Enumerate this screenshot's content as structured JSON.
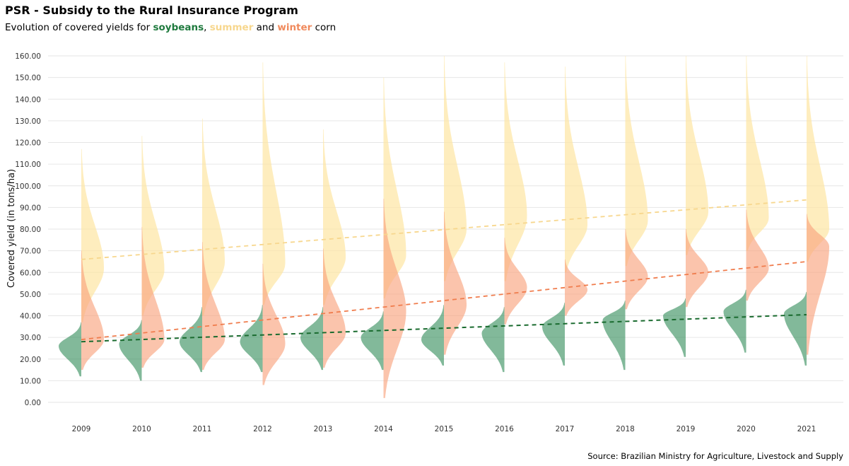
{
  "title": "PSR - Subsidy to the Rural Insurance Program",
  "subtitle": {
    "prefix": "Evolution of covered yields for ",
    "soy": "soybeans",
    "sep": ", ",
    "summer": "summer",
    "and": " and ",
    "winter": "winter",
    "suffix": " corn"
  },
  "source": "Source: Brazilian Ministry for Agriculture, Livestock and Supply",
  "colors": {
    "soybeans": "#2e8b57",
    "soybeans_trend": "#1a6b2f",
    "summer": "#fde6a3",
    "summer_trend": "#f7d78e",
    "winter": "#f9a47f",
    "winter_trend": "#f07d4e",
    "grid": "#e6e6e6"
  },
  "chart_data": {
    "type": "area",
    "subtype": "half-violin density distributions per year",
    "ylabel": "Covered yield (in tons/ha)",
    "xlabel": "",
    "ylim": [
      0,
      160
    ],
    "yticks": [
      "0.00",
      "10.00",
      "20.00",
      "30.00",
      "40.00",
      "50.00",
      "60.00",
      "70.00",
      "80.00",
      "90.00",
      "100.00",
      "110.00",
      "120.00",
      "130.00",
      "140.00",
      "150.00",
      "160.00"
    ],
    "categories": [
      "2009",
      "2010",
      "2011",
      "2012",
      "2013",
      "2014",
      "2015",
      "2016",
      "2017",
      "2018",
      "2019",
      "2020",
      "2021"
    ],
    "grid": true,
    "legend": "none (colors named in subtitle)",
    "series": [
      {
        "name": "soybeans",
        "side": "left",
        "mode": [
          26,
          27,
          28,
          28,
          30,
          30,
          29,
          32,
          35,
          38,
          40,
          42,
          41
        ],
        "min": [
          12,
          10,
          14,
          14,
          15,
          15,
          17,
          14,
          17,
          15,
          21,
          23,
          17
        ],
        "max": [
          37,
          38,
          44,
          45,
          44,
          42,
          45,
          44,
          46,
          47,
          48,
          52,
          51
        ],
        "trend_start": 28,
        "trend_end": 40.5
      },
      {
        "name": "summer",
        "side": "right",
        "mode": [
          62,
          61,
          65,
          64,
          67,
          68,
          80,
          86,
          82,
          84,
          88,
          85,
          80
        ],
        "min": [
          37,
          40,
          40,
          45,
          45,
          48,
          56,
          56,
          60,
          63,
          68,
          70,
          65
        ],
        "max": [
          117,
          123,
          131,
          157,
          126,
          150,
          160,
          157,
          155,
          160,
          160,
          160,
          160
        ],
        "trend_start": 66,
        "trend_end": 93.5
      },
      {
        "name": "winter",
        "side": "right",
        "mode": [
          29,
          29,
          29,
          27,
          32,
          42,
          45,
          53,
          52,
          58,
          60,
          62,
          72
        ],
        "min": [
          15,
          16,
          15,
          8,
          16,
          2,
          22,
          36,
          40,
          43,
          44,
          47,
          22
        ],
        "max": [
          70,
          81,
          74,
          64,
          71,
          94,
          88,
          76,
          66,
          80,
          80,
          89,
          87
        ],
        "trend_start": 29,
        "trend_end": 65
      }
    ]
  }
}
